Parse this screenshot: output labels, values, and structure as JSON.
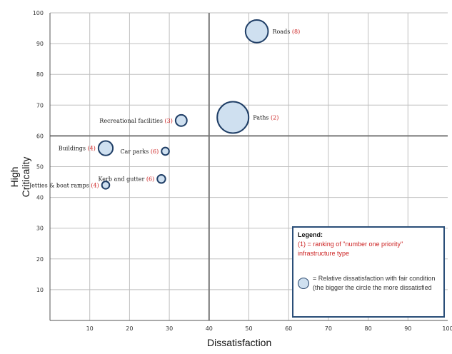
{
  "chart_data": {
    "type": "scatter",
    "title": "",
    "xlabel": "Dissatisfaction",
    "ylabel": "High Criticality",
    "xlim": [
      0,
      100
    ],
    "ylim": [
      0,
      100
    ],
    "x_ticks": [
      "10",
      "20",
      "30",
      "40",
      "50",
      "60",
      "70",
      "80",
      "90",
      "100"
    ],
    "y_ticks": [
      "10",
      "20",
      "30",
      "40",
      "50",
      "60",
      "70",
      "80",
      "90",
      "100"
    ],
    "grid": true,
    "quadrant_lines": {
      "x": 40,
      "y": 60
    },
    "points": [
      {
        "label": "Roads",
        "rank": "(8)",
        "x": 52,
        "y": 94,
        "size": 3.6
      },
      {
        "label": "Paths",
        "rank": "(2)",
        "x": 46,
        "y": 66,
        "size": 5.0
      },
      {
        "label": "Recreational facilities",
        "rank": "(3)",
        "x": 33,
        "y": 65,
        "size": 1.8
      },
      {
        "label": "Buildings",
        "rank": "(4)",
        "x": 14,
        "y": 56,
        "size": 2.3
      },
      {
        "label": "Car parks",
        "rank": "(6)",
        "x": 29,
        "y": 55,
        "size": 1.2
      },
      {
        "label": "Kerb and gutter",
        "rank": "(6)",
        "x": 28,
        "y": 46,
        "size": 1.3
      },
      {
        "label": "Jetties & boat ramps",
        "rank": "(4)",
        "x": 14,
        "y": 44,
        "size": 1.2
      }
    ],
    "legend": {
      "heading": "Legend:",
      "rank_text": "(1) = ranking of \"number one priority\" infrastructure type",
      "circle_text": "= Relative dissatisfaction with fair condition (the bigger the circle the more dissatisfied"
    },
    "colors": {
      "bubble_fill": "#cfe0f0",
      "bubble_stroke": "#1f3e66",
      "rank_text": "#cc2222",
      "legend_border": "#2a4e78",
      "grid": "#bfbfbf",
      "quadrant": "#777777"
    }
  }
}
